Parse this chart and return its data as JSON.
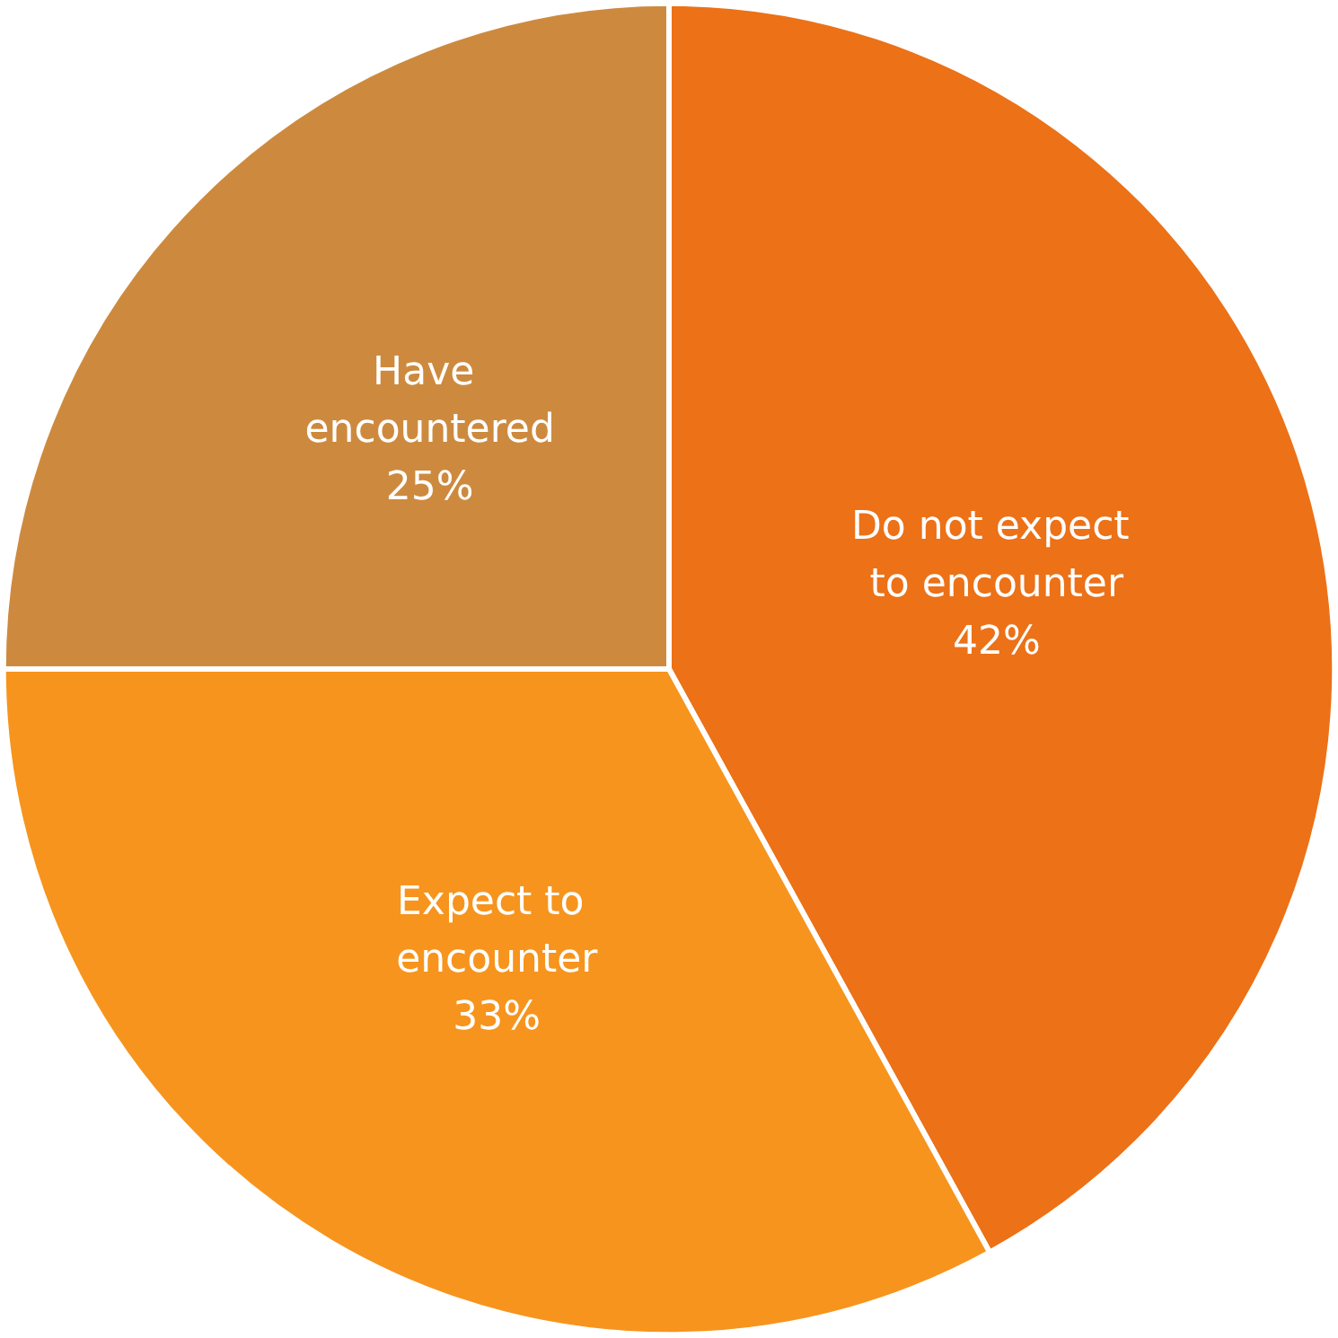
{
  "chart_data": {
    "type": "pie",
    "categories": [
      "Do not expect to encounter",
      "Expect to encounter",
      "Have encountered"
    ],
    "values": [
      42,
      33,
      25
    ],
    "colors": [
      "#ec7117",
      "#f7941d",
      "#cd8a3e"
    ],
    "value_labels": [
      "42%",
      "33%",
      "25%"
    ],
    "legend": false
  }
}
